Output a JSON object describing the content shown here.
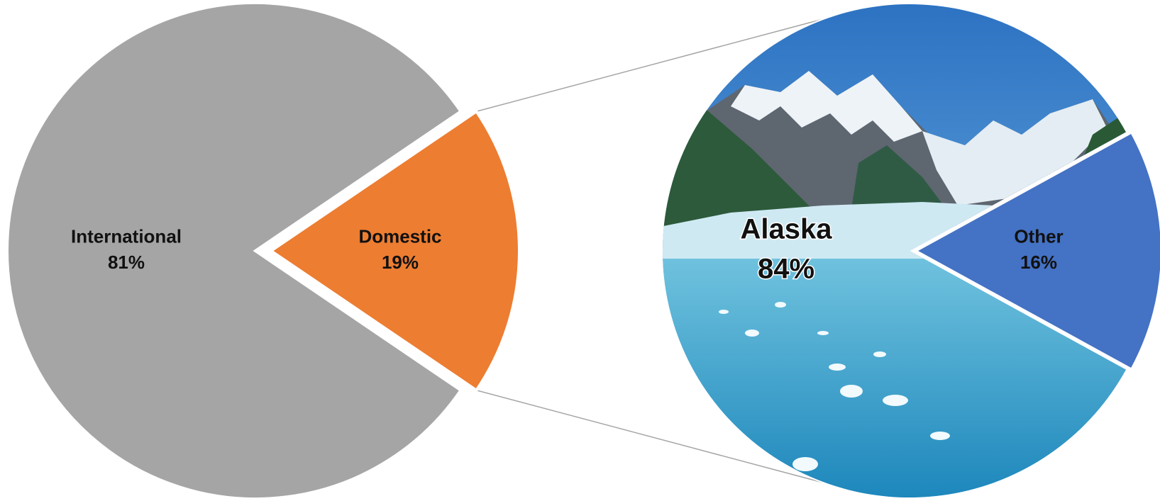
{
  "chart_data": [
    {
      "type": "pie",
      "categories": [
        "International",
        "Domestic"
      ],
      "values": [
        81,
        19
      ],
      "value_labels": [
        "81%",
        "19%"
      ],
      "colors": [
        "#a5a5a5",
        "#ed7d31"
      ]
    },
    {
      "type": "pie",
      "categories": [
        "Alaska",
        "Other"
      ],
      "values": [
        84,
        16
      ],
      "value_labels": [
        "84%",
        "16%"
      ],
      "colors": [
        "#3a93c9",
        "#4472c4"
      ]
    }
  ]
}
